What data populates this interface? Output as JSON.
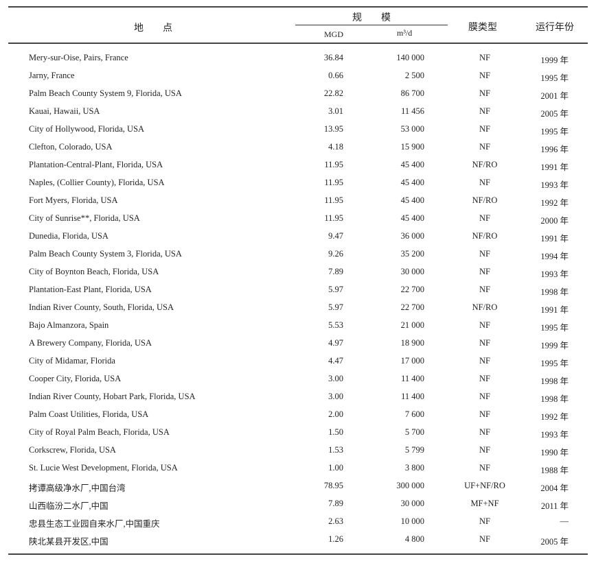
{
  "header": {
    "location": "地　　点",
    "scale": "规　　模",
    "mgd": "MGD",
    "m3d": "m³/d",
    "membrane": "膜类型",
    "year": "运行年份"
  },
  "rows": [
    {
      "location": "Mery-sur-Oise, Pairs, France",
      "mgd": "36.84",
      "m3d": "140 000",
      "membrane": "NF",
      "year": "1999 年"
    },
    {
      "location": "Jarny, France",
      "mgd": "0.66",
      "m3d": "2 500",
      "membrane": "NF",
      "year": "1995 年"
    },
    {
      "location": "Palm Beach County System 9, Florida, USA",
      "mgd": "22.82",
      "m3d": "86 700",
      "membrane": "NF",
      "year": "2001 年"
    },
    {
      "location": "Kauai, Hawaii, USA",
      "mgd": "3.01",
      "m3d": "11 456",
      "membrane": "NF",
      "year": "2005 年"
    },
    {
      "location": "City of Hollywood, Florida, USA",
      "mgd": "13.95",
      "m3d": "53 000",
      "membrane": "NF",
      "year": "1995 年"
    },
    {
      "location": "Clefton, Colorado, USA",
      "mgd": "4.18",
      "m3d": "15 900",
      "membrane": "NF",
      "year": "1996 年"
    },
    {
      "location": "Plantation-Central-Plant, Florida, USA",
      "mgd": "11.95",
      "m3d": "45 400",
      "membrane": "NF/RO",
      "year": "1991 年"
    },
    {
      "location": "Naples, (Collier County), Florida, USA",
      "mgd": "11.95",
      "m3d": "45 400",
      "membrane": "NF",
      "year": "1993 年"
    },
    {
      "location": "Fort Myers, Florida, USA",
      "mgd": "11.95",
      "m3d": "45 400",
      "membrane": "NF/RO",
      "year": "1992 年"
    },
    {
      "location": "City of Sunrise**, Florida, USA",
      "mgd": "11.95",
      "m3d": "45 400",
      "membrane": "NF",
      "year": "2000 年"
    },
    {
      "location": "Dunedia, Florida, USA",
      "mgd": "9.47",
      "m3d": "36 000",
      "membrane": "NF/RO",
      "year": "1991 年"
    },
    {
      "location": "Palm Beach County System 3, Florida, USA",
      "mgd": "9.26",
      "m3d": "35 200",
      "membrane": "NF",
      "year": "1994 年"
    },
    {
      "location": "City of Boynton Beach, Florida, USA",
      "mgd": "7.89",
      "m3d": "30 000",
      "membrane": "NF",
      "year": "1993 年"
    },
    {
      "location": "Plantation-East Plant, Florida, USA",
      "mgd": "5.97",
      "m3d": "22 700",
      "membrane": "NF",
      "year": "1998 年"
    },
    {
      "location": "Indian River County, South, Florida, USA",
      "mgd": "5.97",
      "m3d": "22 700",
      "membrane": "NF/RO",
      "year": "1991 年"
    },
    {
      "location": "Bajo Almanzora, Spain",
      "mgd": "5.53",
      "m3d": "21 000",
      "membrane": "NF",
      "year": "1995 年"
    },
    {
      "location": "A Brewery Company, Florida, USA",
      "mgd": "4.97",
      "m3d": "18 900",
      "membrane": "NF",
      "year": "1999 年"
    },
    {
      "location": "City of Midamar, Florida",
      "mgd": "4.47",
      "m3d": "17 000",
      "membrane": "NF",
      "year": "1995 年"
    },
    {
      "location": "Cooper City, Florida, USA",
      "mgd": "3.00",
      "m3d": "11 400",
      "membrane": "NF",
      "year": "1998 年"
    },
    {
      "location": "Indian River County, Hobart Park, Florida, USA",
      "mgd": "3.00",
      "m3d": "11 400",
      "membrane": "NF",
      "year": "1998 年"
    },
    {
      "location": "Palm Coast Utilities, Florida, USA",
      "mgd": "2.00",
      "m3d": "7 600",
      "membrane": "NF",
      "year": "1992 年"
    },
    {
      "location": "City of Royal Palm Beach, Florida, USA",
      "mgd": "1.50",
      "m3d": "5 700",
      "membrane": "NF",
      "year": "1993 年"
    },
    {
      "location": "Corkscrew, Florida, USA",
      "mgd": "1.53",
      "m3d": "5 799",
      "membrane": "NF",
      "year": "1990 年"
    },
    {
      "location": "St. Lucie West Development, Florida, USA",
      "mgd": "1.00",
      "m3d": "3 800",
      "membrane": "NF",
      "year": "1988 年"
    },
    {
      "location": "拷谭高级净水厂,中国台湾",
      "mgd": "78.95",
      "m3d": "300 000",
      "membrane": "UF+NF/RO",
      "year": "2004 年"
    },
    {
      "location": "山西临汾二水厂,中国",
      "mgd": "7.89",
      "m3d": "30 000",
      "membrane": "MF+NF",
      "year": "2011 年"
    },
    {
      "location": "忠县生态工业园自来水厂,中国重庆",
      "mgd": "2.63",
      "m3d": "10 000",
      "membrane": "NF",
      "year": "—"
    },
    {
      "location": "陕北某县开发区,中国",
      "mgd": "1.26",
      "m3d": "4 800",
      "membrane": "NF",
      "year": "2005 年"
    }
  ]
}
